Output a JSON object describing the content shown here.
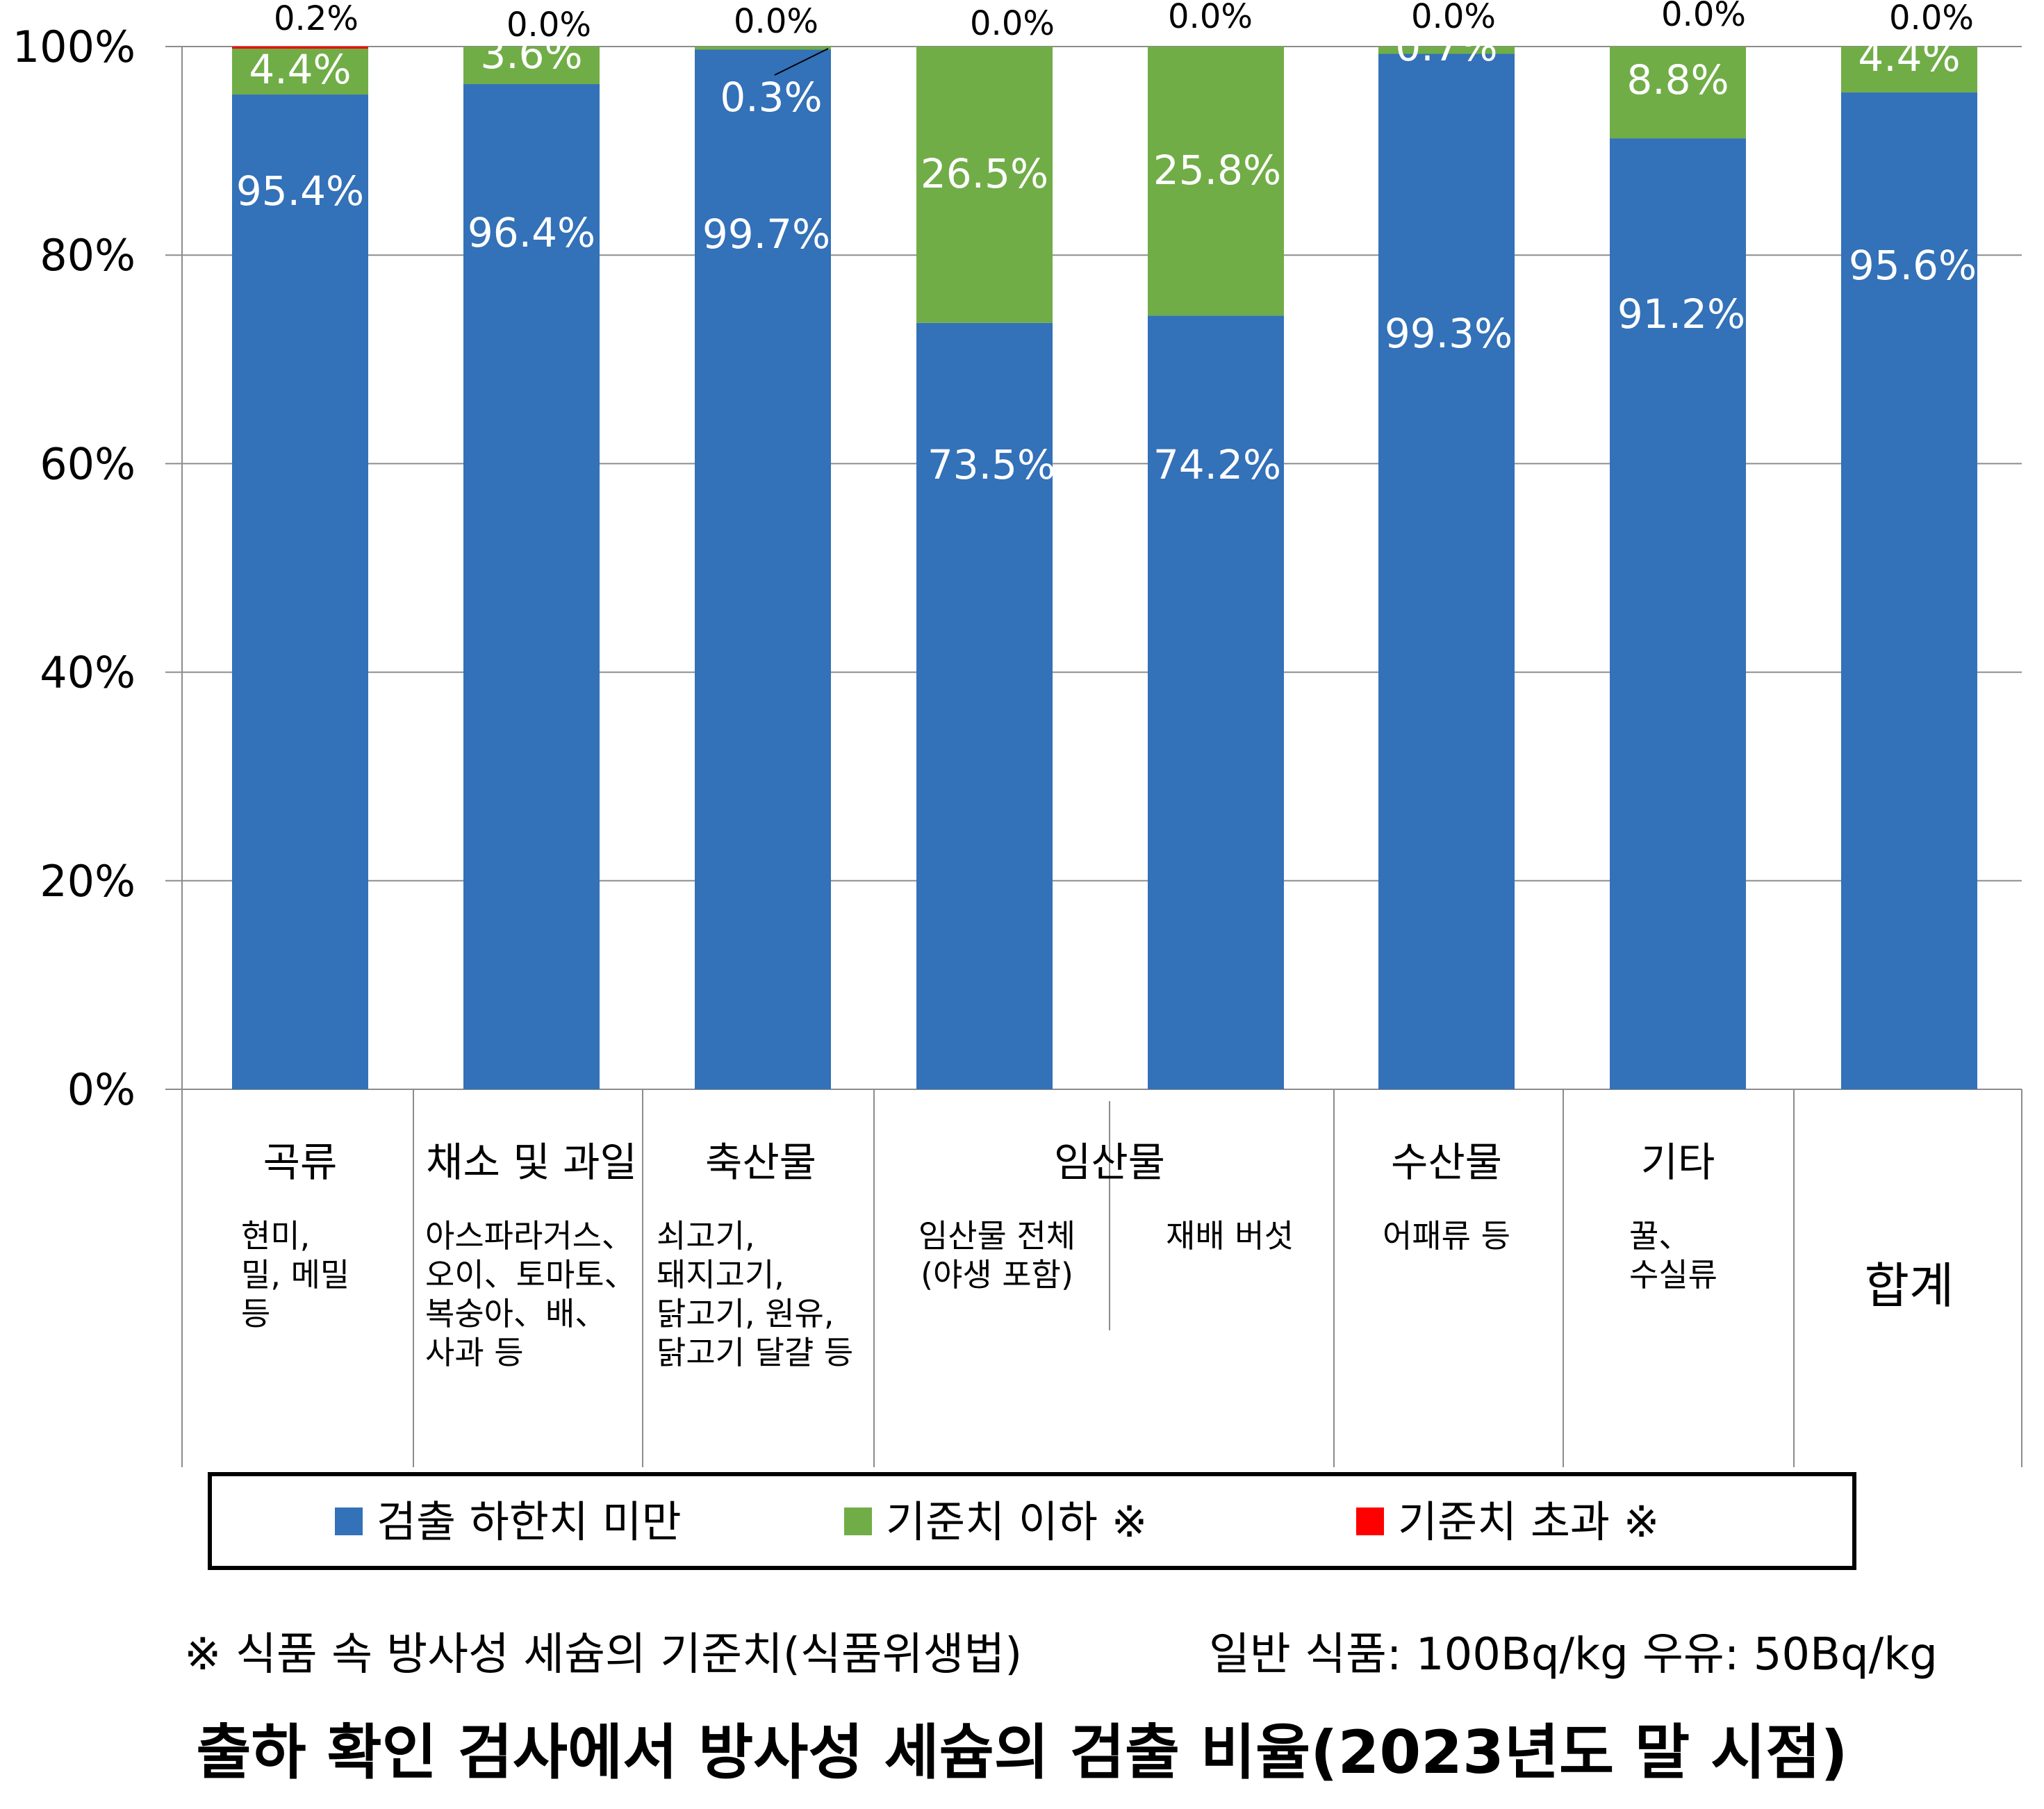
{
  "chart_data": {
    "type": "bar",
    "stacked": true,
    "percent_stacked": true,
    "grid": true,
    "ylim": [
      0,
      100
    ],
    "yticks": [
      "0%",
      "20%",
      "40%",
      "60%",
      "80%",
      "100%"
    ],
    "categories": [
      {
        "name": "곡류",
        "desc": [
          "현미,",
          "밀, 메밀",
          "등"
        ]
      },
      {
        "name": "채소 및 과일",
        "desc": [
          "아스파라거스、",
          "오이、토마토、",
          "복숭아、배、",
          "사과 등"
        ]
      },
      {
        "name": "축산물",
        "desc": [
          "쇠고기,",
          "돼지고기,",
          "닭고기, 원유,",
          "닭고기 달걀 등"
        ]
      },
      {
        "name": "임산물",
        "desc": [
          "임산물 전체",
          "(야생 포함)"
        ]
      },
      {
        "name": "",
        "desc": [
          "재배 버섯"
        ]
      },
      {
        "name": "수산물",
        "desc": [
          "어패류 등"
        ]
      },
      {
        "name": "기타",
        "desc": [
          "꿀、",
          "수실류"
        ]
      },
      {
        "name": "합계",
        "desc": []
      }
    ],
    "series": [
      {
        "name": "검출 하한치 미만",
        "color": "#3371b8",
        "values": [
          95.4,
          96.4,
          99.7,
          73.5,
          74.2,
          99.3,
          91.2,
          95.6
        ],
        "labels": [
          "95.4%",
          "96.4%",
          "99.7%",
          "73.5%",
          "74.2%",
          "99.3%",
          "91.2%",
          "95.6%"
        ]
      },
      {
        "name": "기준치 이하 ※",
        "color": "#70ad47",
        "values": [
          4.4,
          3.6,
          0.3,
          26.5,
          25.8,
          0.7,
          8.8,
          4.4
        ],
        "labels": [
          "4.4%",
          "3.6%",
          "0.3%",
          "26.5%",
          "25.8%",
          "0.7%",
          "8.8%",
          "4.4%"
        ]
      },
      {
        "name": "기준치 초과 ※",
        "color": "#ff0000",
        "values": [
          0.2,
          0.0,
          0.0,
          0.0,
          0.0,
          0.0,
          0.0,
          0.0
        ],
        "labels": [
          "0.2%",
          "0.0%",
          "0.0%",
          "0.0%",
          "0.0%",
          "0.0%",
          "0.0%",
          "0.0%"
        ]
      }
    ],
    "legend_position": "bottom",
    "title": "출하 확인 검사에서 방사성 세슘의 검출 비율(2023년도 말 시점)"
  },
  "footnote": {
    "left": "※ 식품 속 방사성 세슘의 기준치(식품위생법)",
    "right": "일반 식품: 100Bq/kg 우유: 50Bq/kg"
  }
}
